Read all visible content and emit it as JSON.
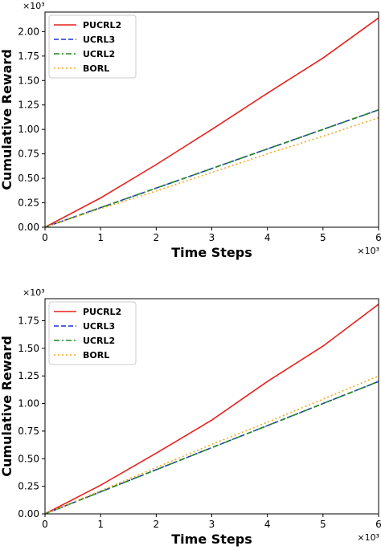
{
  "chart_data": [
    {
      "type": "line",
      "title": "",
      "xlabel": "Time Steps",
      "ylabel": "Cumulative Reward",
      "x_multiplier_label": "×10³",
      "y_multiplier_label": "×10³",
      "xlim": [
        0,
        6
      ],
      "ylim": [
        0,
        2.2
      ],
      "x_ticks": [
        0,
        1,
        2,
        3,
        4,
        5,
        6
      ],
      "x_tick_labels": [
        "0",
        "1",
        "2",
        "3",
        "4",
        "5",
        "6"
      ],
      "y_ticks": [
        0,
        0.25,
        0.5,
        0.75,
        1.0,
        1.25,
        1.5,
        1.75,
        2.0
      ],
      "y_tick_labels": [
        "0.00",
        "0.25",
        "0.50",
        "0.75",
        "1.00",
        "1.25",
        "1.50",
        "1.75",
        "2.00"
      ],
      "grid": false,
      "legend_position": "top-left",
      "series": [
        {
          "name": "PUCRL2",
          "color": "#e8211c",
          "dash": "solid",
          "x": [
            0,
            1,
            2,
            3,
            4,
            5,
            6
          ],
          "y": [
            0,
            0.3,
            0.64,
            1.0,
            1.37,
            1.73,
            2.14
          ]
        },
        {
          "name": "UCRL3",
          "color": "#1f2fd0",
          "dash": "dashed",
          "x": [
            0,
            1,
            2,
            3,
            4,
            5,
            6
          ],
          "y": [
            0,
            0.2,
            0.4,
            0.6,
            0.8,
            1.0,
            1.2
          ]
        },
        {
          "name": "UCRL2",
          "color": "#1e8a1e",
          "dash": "dashdot",
          "x": [
            0,
            1,
            2,
            3,
            4,
            5,
            6
          ],
          "y": [
            0,
            0.2,
            0.4,
            0.6,
            0.8,
            1.0,
            1.2
          ]
        },
        {
          "name": "BORL",
          "color": "#f5a623",
          "dash": "dotted",
          "x": [
            0,
            1,
            2,
            3,
            4,
            5,
            6
          ],
          "y": [
            0,
            0.19,
            0.37,
            0.56,
            0.75,
            0.93,
            1.12
          ]
        }
      ]
    },
    {
      "type": "line",
      "title": "",
      "xlabel": "Time Steps",
      "ylabel": "Cumulative Reward",
      "x_multiplier_label": "×10³",
      "y_multiplier_label": "×10³",
      "xlim": [
        0,
        6
      ],
      "ylim": [
        0,
        1.95
      ],
      "x_ticks": [
        0,
        1,
        2,
        3,
        4,
        5,
        6
      ],
      "x_tick_labels": [
        "0",
        "1",
        "2",
        "3",
        "4",
        "5",
        "6"
      ],
      "y_ticks": [
        0,
        0.25,
        0.5,
        0.75,
        1.0,
        1.25,
        1.5,
        1.75
      ],
      "y_tick_labels": [
        "0.00",
        "0.25",
        "0.50",
        "0.75",
        "1.00",
        "1.25",
        "1.50",
        "1.75"
      ],
      "grid": false,
      "legend_position": "top-left",
      "series": [
        {
          "name": "PUCRL2",
          "color": "#e8211c",
          "dash": "solid",
          "x": [
            0,
            1,
            2,
            3,
            4,
            5,
            6
          ],
          "y": [
            0,
            0.26,
            0.55,
            0.85,
            1.2,
            1.52,
            1.9
          ]
        },
        {
          "name": "UCRL3",
          "color": "#1f2fd0",
          "dash": "dashed",
          "x": [
            0,
            1,
            2,
            3,
            4,
            5,
            6
          ],
          "y": [
            0,
            0.2,
            0.4,
            0.6,
            0.8,
            1.0,
            1.2
          ]
        },
        {
          "name": "UCRL2",
          "color": "#1e8a1e",
          "dash": "dashdot",
          "x": [
            0,
            1,
            2,
            3,
            4,
            5,
            6
          ],
          "y": [
            0,
            0.2,
            0.4,
            0.6,
            0.8,
            1.0,
            1.2
          ]
        },
        {
          "name": "BORL",
          "color": "#f5a623",
          "dash": "dotted",
          "x": [
            0,
            1,
            2,
            3,
            4,
            5,
            6
          ],
          "y": [
            0,
            0.21,
            0.42,
            0.63,
            0.83,
            1.04,
            1.25
          ]
        }
      ]
    }
  ]
}
